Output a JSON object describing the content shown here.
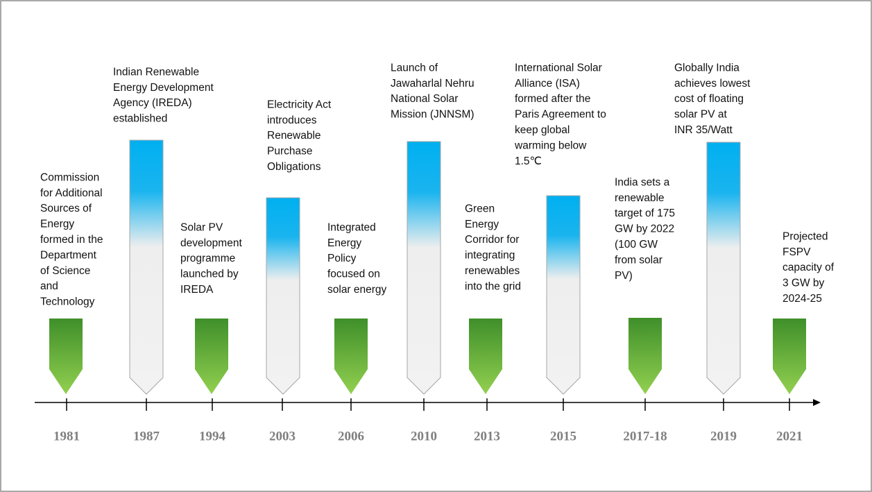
{
  "events": [
    {
      "year": "1981",
      "lines": [
        "Commission",
        "for Additional",
        "Sources of",
        "Energy",
        "formed in the",
        "Department",
        "of Science",
        "and",
        "Technology"
      ]
    },
    {
      "year": "1987",
      "lines": [
        "Indian Renewable",
        "Energy Development",
        "Agency (IREDA)",
        "established"
      ]
    },
    {
      "year": "1994",
      "lines": [
        "Solar PV",
        "development",
        "programme",
        "launched by",
        "IREDA"
      ]
    },
    {
      "year": "2003",
      "lines": [
        "Electricity Act",
        "introduces",
        "Renewable",
        "Purchase",
        "Obligations"
      ]
    },
    {
      "year": "2006",
      "lines": [
        "Integrated",
        "Energy",
        "Policy",
        "focused on",
        "solar energy"
      ]
    },
    {
      "year": "2010",
      "lines": [
        "Launch of",
        "Jawaharlal Nehru",
        "National Solar",
        "Mission (JNNSM)"
      ]
    },
    {
      "year": "2013",
      "lines": [
        "Green",
        "Energy",
        "Corridor for",
        "integrating",
        "renewables",
        "into the grid"
      ]
    },
    {
      "year": "2015",
      "lines": [
        "International Solar",
        "Alliance (ISA)",
        "formed after the",
        "Paris Agreement to",
        "keep global",
        "warming below",
        "1.5℃"
      ]
    },
    {
      "year": "2017-18",
      "lines": [
        "India sets a",
        "renewable",
        "target of 175",
        "GW by 2022",
        "(100 GW",
        "from solar",
        "PV)"
      ]
    },
    {
      "year": "2019",
      "lines": [
        "Globally India",
        "achieves lowest",
        "cost of floating",
        "solar PV at",
        "INR 35/Watt"
      ]
    },
    {
      "year": "2021",
      "lines": [
        "Projected",
        "FSPV",
        "capacity of",
        "3 GW by",
        "2024-25"
      ]
    }
  ]
}
